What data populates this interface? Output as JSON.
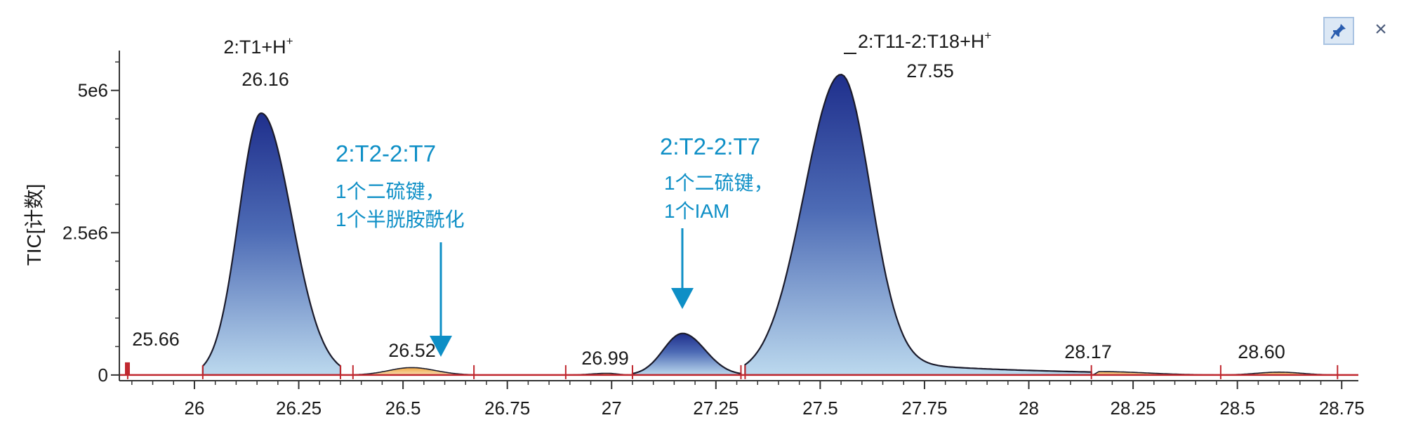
{
  "window": {
    "pin_icon": "pin-icon",
    "close_label": "×"
  },
  "chart_data": {
    "type": "area",
    "xlabel": "",
    "ylabel": "TIC[计数]",
    "xlim": [
      25.82,
      28.79
    ],
    "ylim": [
      -100000,
      5700000
    ],
    "x_ticks": [
      26,
      26.25,
      26.5,
      26.75,
      27,
      27.25,
      27.5,
      27.75,
      28,
      28.25,
      28.5,
      28.75
    ],
    "x_tick_labels": [
      "26",
      "26.25",
      "26.5",
      "26.75",
      "27",
      "27.25",
      "27.5",
      "27.75",
      "28",
      "28.25",
      "28.5",
      "28.75"
    ],
    "y_ticks": [
      0,
      2500000,
      5000000
    ],
    "y_tick_labels": [
      "0",
      "2.5e6",
      "5e6"
    ],
    "grid": false,
    "colors": {
      "major_fill_top": "#1f2f8c",
      "major_fill_bottom": "#bcd9ee",
      "minor_fill": "#f2b45a",
      "baseline": "#c0282f",
      "annotation": "#0e8fc6",
      "axis": "#333333"
    },
    "peaks": [
      {
        "rt": 25.66,
        "height": 20000,
        "left": 25.84,
        "right": 26.02,
        "kind": "minor"
      },
      {
        "rt": 26.16,
        "height": 4600000,
        "left": 26.02,
        "right": 26.35,
        "kind": "major"
      },
      {
        "rt": 26.52,
        "height": 130000,
        "left": 26.38,
        "right": 26.67,
        "kind": "minor"
      },
      {
        "rt": 26.99,
        "height": 30000,
        "left": 26.89,
        "right": 27.05,
        "kind": "minor"
      },
      {
        "rt": 27.17,
        "height": 730000,
        "left": 27.05,
        "right": 27.31,
        "kind": "major"
      },
      {
        "rt": 27.55,
        "height": 5280000,
        "left": 27.32,
        "right": 28.15,
        "kind": "major"
      },
      {
        "rt": 28.17,
        "height": 60000,
        "left": 28.15,
        "right": 28.46,
        "kind": "minor"
      },
      {
        "rt": 28.6,
        "height": 50000,
        "left": 28.46,
        "right": 28.74,
        "kind": "minor"
      }
    ],
    "peak_labels": [
      {
        "text": "25.66"
      },
      {
        "text": "26.16",
        "name": "2:T1+H",
        "sup": "+"
      },
      {
        "text": "26.52"
      },
      {
        "text": "26.99"
      },
      {
        "text": "27.55",
        "name": "2:T11-2:T18+H",
        "sup": "+"
      },
      {
        "text": "28.17"
      },
      {
        "text": "28.60"
      }
    ],
    "annotations": [
      {
        "title": "2:T2-2:T7",
        "lines": [
          "1个二硫键，",
          "1个半胱胺酰化"
        ],
        "arrow_x": 26.59
      },
      {
        "title": "2:T2-2:T7",
        "lines": [
          "1个二硫键，",
          "1个IAM"
        ],
        "arrow_x": 27.17
      }
    ]
  }
}
